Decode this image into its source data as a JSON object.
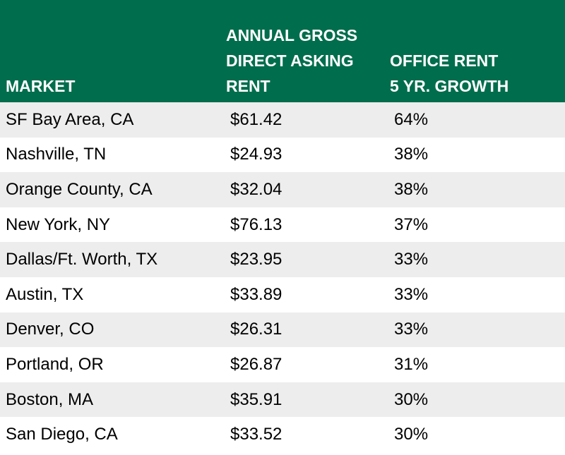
{
  "header": {
    "market": "MARKET",
    "rent_line1": "ANNUAL GROSS",
    "rent_line2": "DIRECT ASKING",
    "rent_line3": "RENT",
    "growth_line1": "OFFICE RENT",
    "growth_line2": "5 YR. GROWTH"
  },
  "rows": [
    {
      "market": "SF Bay Area, CA",
      "rent": "$61.42",
      "growth": "64%"
    },
    {
      "market": "Nashville, TN",
      "rent": "$24.93",
      "growth": "38%"
    },
    {
      "market": "Orange County, CA",
      "rent": "$32.04",
      "growth": "38%"
    },
    {
      "market": "New York, NY",
      "rent": "$76.13",
      "growth": "37%"
    },
    {
      "market": "Dallas/Ft. Worth, TX",
      "rent": "$23.95",
      "growth": "33%"
    },
    {
      "market": "Austin, TX",
      "rent": "$33.89",
      "growth": "33%"
    },
    {
      "market": "Denver, CO",
      "rent": "$26.31",
      "growth": "33%"
    },
    {
      "market": "Portland, OR",
      "rent": "$26.87",
      "growth": "31%"
    },
    {
      "market": "Boston, MA",
      "rent": "$35.91",
      "growth": "30%"
    },
    {
      "market": "San Diego, CA",
      "rent": "$33.52",
      "growth": "30%"
    }
  ],
  "colors": {
    "header_bg": "#006d4c",
    "header_text": "#ffffff",
    "stripe": "#ededed"
  }
}
